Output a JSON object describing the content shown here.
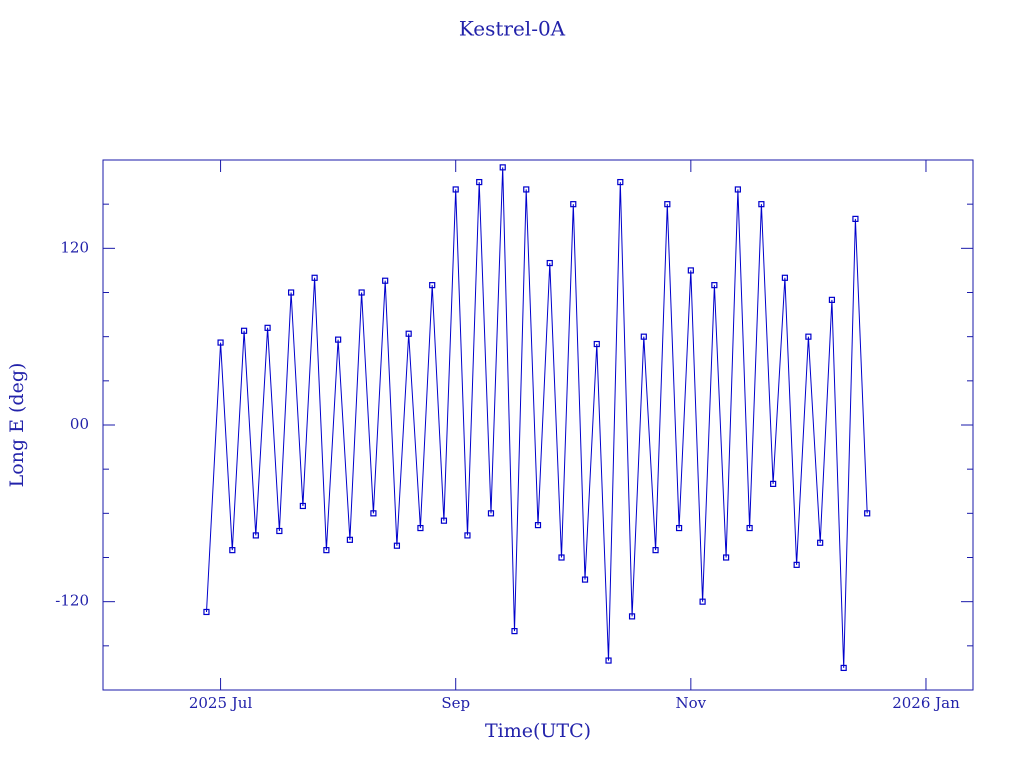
{
  "chart_data": {
    "type": "line",
    "title": "Kestrel-0A",
    "x_label": "Time(UTC)",
    "y_label": "Long E (deg)",
    "x": [
      6.88,
      7.0,
      7.1,
      7.2,
      7.3,
      7.4,
      7.5,
      7.6,
      7.7,
      7.8,
      7.9,
      8.0,
      8.1,
      8.2,
      8.3,
      8.4,
      8.5,
      8.6,
      8.7,
      8.8,
      8.9,
      9.0,
      9.1,
      9.2,
      9.3,
      9.4,
      9.5,
      9.6,
      9.7,
      9.8,
      9.9,
      10.0,
      10.1,
      10.2,
      10.3,
      10.4,
      10.5,
      10.6,
      10.7,
      10.8,
      10.9,
      11.0,
      11.1,
      11.2,
      11.3,
      11.4,
      11.5,
      11.6,
      11.7,
      11.8,
      11.9,
      12.0,
      12.1,
      12.2,
      12.3,
      12.4,
      12.5
    ],
    "series": [
      {
        "color": "#0000cc",
        "values": [
          -127,
          56,
          -85,
          64,
          -75,
          66,
          -72,
          90,
          -55,
          100,
          -85,
          58,
          -78,
          90,
          -60,
          98,
          -82,
          62,
          -70,
          95,
          -65,
          160,
          -75,
          165,
          -60,
          175,
          -140,
          160,
          -68,
          110,
          -90,
          150,
          -105,
          55,
          -160,
          165,
          -130,
          60,
          -85,
          150,
          -70,
          105,
          -120,
          95,
          -90,
          160,
          -70,
          150,
          -40,
          100,
          -95,
          60,
          -80,
          85,
          -165,
          140,
          -60
        ]
      }
    ],
    "xlim": [
      6.0,
      13.4
    ],
    "xticks": [
      {
        "value": 7,
        "label": "2025 Jul"
      },
      {
        "value": 9,
        "label": "Sep"
      },
      {
        "value": 11,
        "label": "Nov"
      },
      {
        "value": 13,
        "label": "2026 Jan"
      }
    ],
    "ylim": [
      -180,
      180
    ],
    "yticks": [
      -120,
      {
        "value": 0,
        "label": "00"
      },
      120
    ],
    "yminorticks": [
      -150,
      -90,
      -60,
      -30,
      30,
      60,
      90,
      150
    ],
    "markers": true
  }
}
